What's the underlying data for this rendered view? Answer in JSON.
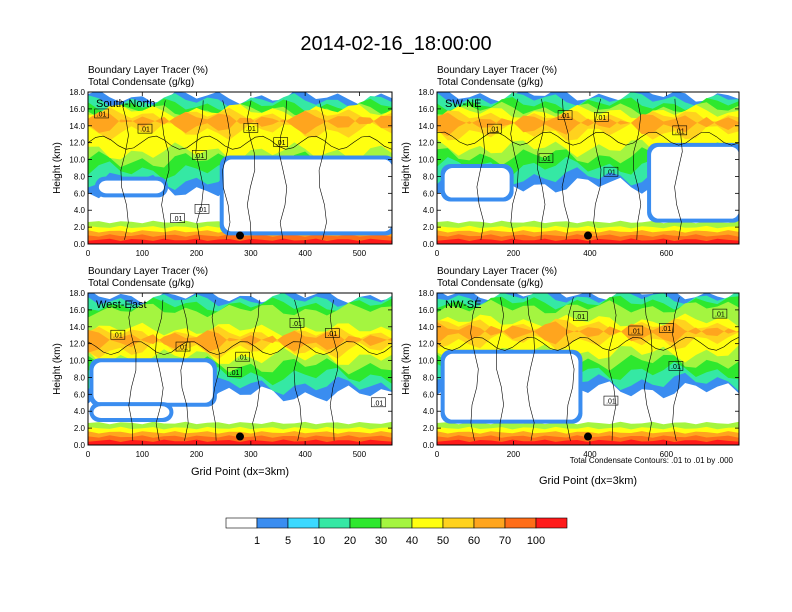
{
  "figure": {
    "title": "2014-02-16_18:00:00",
    "contour_note": "Total Condensate Contours: .01 to .01 by .000"
  },
  "colorbar": {
    "colors": [
      "#ffffff",
      "#3a8df0",
      "#3bd9ff",
      "#35e8a4",
      "#2ee82e",
      "#a4f540",
      "#ffff10",
      "#ffd21e",
      "#ffa51e",
      "#ff6d18",
      "#ff1a1a"
    ],
    "labels": [
      "1",
      "5",
      "10",
      "20",
      "30",
      "40",
      "50",
      "60",
      "70",
      "100"
    ]
  },
  "chart_data": [
    {
      "type": "heatmap",
      "name": "South-North",
      "title_lines": [
        "Boundary Layer Tracer   (%)",
        "Total Condensate   (g/kg)"
      ],
      "region_label": "South-North",
      "xlabel": "",
      "ylabel": "Height (km)",
      "xlim": [
        0,
        560
      ],
      "ylim": [
        0,
        18
      ],
      "xticks": [
        0,
        100,
        200,
        300,
        400,
        500
      ],
      "yticks": [
        "0.0",
        "2.0",
        "4.0",
        "6.0",
        "8.0",
        "10.0",
        "12.0",
        "14.0",
        "16.0",
        "18.0"
      ],
      "marker": {
        "x": 280,
        "y": 1.0
      },
      "contour_labels": [
        {
          "text": ".01",
          "x": 25,
          "y": 15.4
        },
        {
          "text": ".01",
          "x": 105,
          "y": 13.6
        },
        {
          "text": ".01",
          "x": 300,
          "y": 13.7
        },
        {
          "text": ".01",
          "x": 355,
          "y": 12.0
        },
        {
          "text": ".01",
          "x": 205,
          "y": 10.5
        },
        {
          "text": ".01",
          "x": 165,
          "y": 3.0
        },
        {
          "text": ".01",
          "x": 210,
          "y": 4.1
        }
      ],
      "condensate_band": {
        "cloud_base_km": 10.5,
        "cloud_top_km": 17.0,
        "core_km": 14.6
      },
      "clear_regions": [
        {
          "x0": 20,
          "x1": 140,
          "y0": 6.0,
          "y1": 7.5
        },
        {
          "x0": 250,
          "x1": 560,
          "y0": 1.5,
          "y1": 10.0
        }
      ]
    },
    {
      "type": "heatmap",
      "name": "SW-NE",
      "title_lines": [
        "Boundary Layer Tracer   (%)",
        "Total Condensate   (g/kg)"
      ],
      "region_label": "SW-NE",
      "xlabel": "",
      "ylabel": "Height (km)",
      "xlim": [
        0,
        790
      ],
      "ylim": [
        0,
        18
      ],
      "xticks": [
        0,
        200,
        400,
        600
      ],
      "yticks": [
        "0.0",
        "2.0",
        "4.0",
        "6.0",
        "8.0",
        "10.0",
        "12.0",
        "14.0",
        "16.0",
        "18.0"
      ],
      "marker": {
        "x": 395,
        "y": 1.0
      },
      "contour_labels": [
        {
          "text": ".01",
          "x": 150,
          "y": 13.6
        },
        {
          "text": ".01",
          "x": 335,
          "y": 15.2
        },
        {
          "text": ".01",
          "x": 430,
          "y": 15.0
        },
        {
          "text": ".01",
          "x": 635,
          "y": 13.4
        },
        {
          "text": ".01",
          "x": 285,
          "y": 10.1
        },
        {
          "text": ".01",
          "x": 455,
          "y": 8.5
        }
      ],
      "condensate_band": {
        "cloud_base_km": 11.0,
        "cloud_top_km": 17.2,
        "core_km": 14.4
      },
      "clear_regions": [
        {
          "x0": 20,
          "x1": 190,
          "y0": 5.5,
          "y1": 9.0
        },
        {
          "x0": 560,
          "x1": 790,
          "y0": 3.0,
          "y1": 11.5
        }
      ]
    },
    {
      "type": "heatmap",
      "name": "West-East",
      "title_lines": [
        "Boundary Layer Tracer   (%)",
        "Total Condensate   (g/kg)"
      ],
      "region_label": "West-East",
      "xlabel": "Grid Point (dx=3km)",
      "ylabel": "Height (km)",
      "xlim": [
        0,
        560
      ],
      "ylim": [
        0,
        18
      ],
      "xticks": [
        0,
        100,
        200,
        300,
        400,
        500
      ],
      "yticks": [
        "0.0",
        "2.0",
        "4.0",
        "6.0",
        "8.0",
        "10.0",
        "12.0",
        "14.0",
        "16.0",
        "18.0"
      ],
      "marker": {
        "x": 280,
        "y": 1.0
      },
      "contour_labels": [
        {
          "text": ".01",
          "x": 55,
          "y": 13.0
        },
        {
          "text": ".01",
          "x": 175,
          "y": 11.6
        },
        {
          "text": ".01",
          "x": 385,
          "y": 14.4
        },
        {
          "text": ".01",
          "x": 450,
          "y": 13.2
        },
        {
          "text": ".01",
          "x": 285,
          "y": 10.4
        },
        {
          "text": ".01",
          "x": 270,
          "y": 8.6
        },
        {
          "text": ".01",
          "x": 535,
          "y": 5.0
        }
      ],
      "condensate_band": {
        "cloud_base_km": 10.0,
        "cloud_top_km": 17.2,
        "core_km": 12.5
      },
      "clear_regions": [
        {
          "x0": 10,
          "x1": 230,
          "y0": 5.0,
          "y1": 9.8
        },
        {
          "x0": 10,
          "x1": 150,
          "y0": 3.2,
          "y1": 4.6
        }
      ]
    },
    {
      "type": "heatmap",
      "name": "NW-SE",
      "title_lines": [
        "Boundary Layer Tracer   (%)",
        "Total Condensate   (g/kg)"
      ],
      "region_label": "NW-SE",
      "xlabel": "Grid Point (dx=3km)",
      "ylabel": "Height (km)",
      "xlim": [
        0,
        790
      ],
      "ylim": [
        0,
        18
      ],
      "xticks": [
        0,
        200,
        400,
        600
      ],
      "yticks": [
        "0.0",
        "2.0",
        "4.0",
        "6.0",
        "8.0",
        "10.0",
        "12.0",
        "14.0",
        "16.0",
        "18.0"
      ],
      "marker": {
        "x": 395,
        "y": 1.0
      },
      "contour_labels": [
        {
          "text": ".01",
          "x": 375,
          "y": 15.2
        },
        {
          "text": ".01",
          "x": 520,
          "y": 13.5
        },
        {
          "text": ".01",
          "x": 600,
          "y": 13.8
        },
        {
          "text": ".01",
          "x": 740,
          "y": 15.5
        },
        {
          "text": ".01",
          "x": 625,
          "y": 9.3
        },
        {
          "text": ".01",
          "x": 455,
          "y": 5.2
        }
      ],
      "condensate_band": {
        "cloud_base_km": 10.5,
        "cloud_top_km": 17.5,
        "core_km": 13.5
      },
      "clear_regions": [
        {
          "x0": 20,
          "x1": 370,
          "y0": 3.0,
          "y1": 10.8
        }
      ]
    }
  ]
}
